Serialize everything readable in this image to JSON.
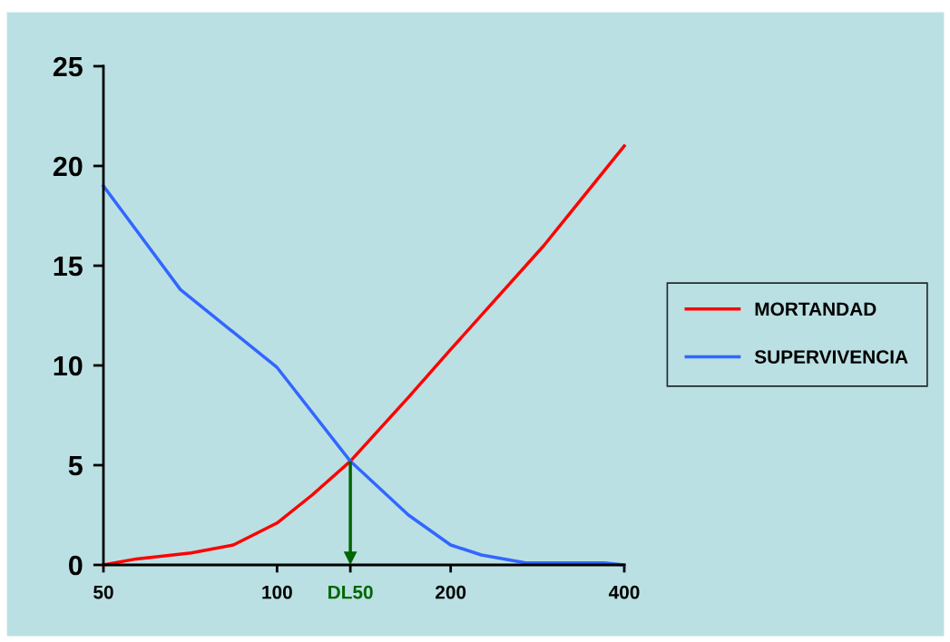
{
  "chart_data": {
    "type": "line",
    "series": [
      {
        "name": "MORTANDAD",
        "color": "#ff0000",
        "x": [
          50,
          57,
          71,
          84,
          100,
          115,
          134,
          169,
          200,
          290,
          400
        ],
        "values": [
          0,
          0.3,
          0.6,
          1.0,
          2.1,
          3.5,
          5.2,
          8.4,
          10.8,
          16,
          21
        ]
      },
      {
        "name": "SUPERVIVENCIA",
        "color": "#3366ff",
        "x": [
          50,
          68,
          100,
          134,
          169,
          200,
          226,
          270,
          333,
          370,
          400
        ],
        "values": [
          19,
          13.8,
          9.9,
          5.2,
          2.5,
          1.0,
          0.5,
          0.1,
          0.1,
          0.1,
          0
        ]
      }
    ],
    "log": "x",
    "xlim": [
      50,
      400
    ],
    "xticks": [
      50,
      100,
      {
        "value": 134,
        "label": "DL50"
      },
      200,
      400
    ],
    "ylim": [
      0,
      25
    ],
    "yticks": [
      0,
      5,
      10,
      15,
      20,
      25
    ],
    "ref_lines": [
      {
        "axis": "x",
        "value": 134,
        "color": "#006600"
      }
    ],
    "grid": false,
    "legend": "right",
    "marker": "none",
    "line_style": "solid"
  }
}
